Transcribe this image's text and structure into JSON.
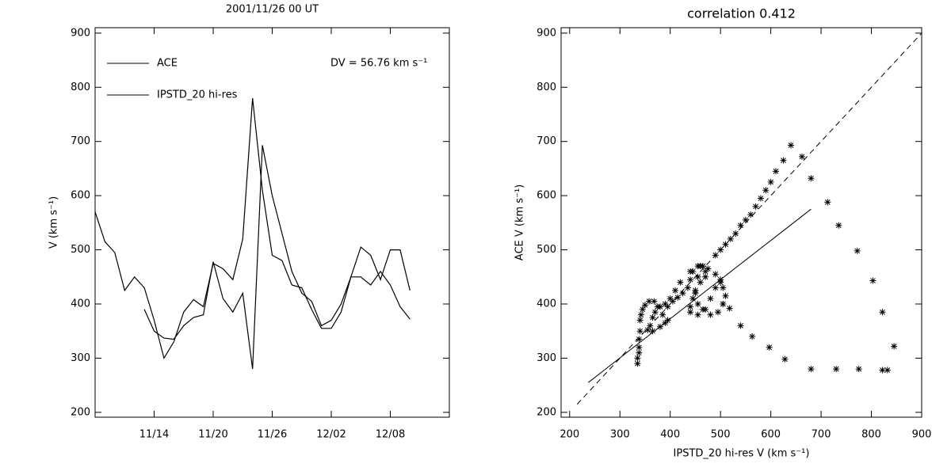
{
  "chart_data": [
    {
      "type": "line",
      "title": "2001/11/26 00 UT",
      "ylabel": "V (km s⁻¹)",
      "annotation": "DV = 56.76 km s⁻¹",
      "legend": "upper left",
      "x": [
        "11/08",
        "11/09",
        "11/10",
        "11/11",
        "11/12",
        "11/13",
        "11/14",
        "11/15",
        "11/16",
        "11/17",
        "11/18",
        "11/19",
        "11/20",
        "11/21",
        "11/22",
        "11/23",
        "11/24",
        "11/25",
        "11/26",
        "11/27",
        "11/28",
        "11/29",
        "11/30",
        "12/01",
        "12/02",
        "12/03",
        "12/04",
        "12/05",
        "12/06",
        "12/07",
        "12/08",
        "12/09",
        "12/10"
      ],
      "series": [
        {
          "name": "ACE",
          "color": "#000000",
          "values": [
            570,
            515,
            495,
            425,
            450,
            430,
            370,
            300,
            330,
            385,
            408,
            395,
            475,
            465,
            445,
            520,
            780,
            610,
            490,
            480,
            435,
            430,
            390,
            355,
            355,
            385,
            450,
            450,
            435,
            460,
            435,
            395,
            372
          ]
        },
        {
          "name": "IPSTD_20 hi-res",
          "color": "#000000",
          "values": [
            null,
            null,
            null,
            null,
            null,
            390,
            350,
            337,
            335,
            360,
            375,
            380,
            478,
            410,
            385,
            420,
            280,
            693,
            600,
            530,
            460,
            420,
            405,
            360,
            370,
            400,
            450,
            505,
            490,
            445,
            500,
            500,
            425
          ]
        }
      ],
      "xlim": [
        "11/08",
        "12/14"
      ],
      "xticks": [
        "11/14",
        "11/20",
        "11/26",
        "12/02",
        "12/08"
      ],
      "ylim": [
        191,
        910
      ],
      "yticks": [
        200,
        300,
        400,
        500,
        600,
        700,
        800,
        900
      ]
    },
    {
      "type": "scatter",
      "title": "correlation 0.412",
      "xlabel": "IPSTD_20 hi-res V (km s⁻¹)",
      "ylabel": "ACE V (km s⁻¹)",
      "color": "#000000",
      "x": [
        640,
        662,
        680,
        713,
        735,
        772,
        803,
        822,
        845,
        822,
        832,
        775,
        730,
        680,
        628,
        597,
        563,
        540,
        518,
        505,
        490,
        500,
        510,
        520,
        530,
        540,
        550,
        560,
        570,
        580,
        590,
        600,
        610,
        625,
        335,
        335,
        338,
        338,
        338,
        340,
        340,
        342,
        345,
        350,
        358,
        368,
        375,
        370,
        365,
        360,
        355,
        365,
        380,
        390,
        395,
        385,
        395,
        405,
        415,
        425,
        435,
        440,
        445,
        455,
        465,
        475,
        470,
        460,
        450,
        445,
        440,
        440,
        455,
        470,
        480,
        490,
        500,
        505,
        510,
        505,
        495,
        480,
        465,
        455,
        450,
        455,
        470,
        490,
        500,
        460,
        440,
        420,
        410,
        400,
        390,
        380
      ],
      "y": [
        693,
        672,
        632,
        588,
        545,
        498,
        443,
        385,
        322,
        278,
        278,
        280,
        280,
        280,
        298,
        320,
        340,
        360,
        392,
        400,
        490,
        500,
        510,
        520,
        530,
        545,
        555,
        565,
        580,
        595,
        610,
        625,
        645,
        665,
        290,
        300,
        310,
        320,
        335,
        350,
        370,
        380,
        390,
        398,
        405,
        405,
        395,
        385,
        375,
        360,
        352,
        350,
        358,
        365,
        370,
        380,
        395,
        405,
        412,
        420,
        430,
        445,
        460,
        470,
        470,
        465,
        450,
        440,
        425,
        410,
        395,
        385,
        380,
        390,
        410,
        430,
        440,
        430,
        415,
        400,
        385,
        380,
        390,
        400,
        420,
        450,
        460,
        455,
        445,
        470,
        460,
        440,
        425,
        410,
        400,
        395
      ],
      "reference_lines": [
        {
          "style": "dashed",
          "x": [
            215,
            900
          ],
          "y": [
            215,
            900
          ]
        },
        {
          "style": "solid",
          "x": [
            237,
            680
          ],
          "y": [
            255,
            575
          ]
        }
      ],
      "xlim": [
        183,
        900
      ],
      "xticks": [
        200,
        300,
        400,
        500,
        600,
        700,
        800,
        900
      ],
      "ylim": [
        191,
        910
      ],
      "yticks": [
        200,
        300,
        400,
        500,
        600,
        700,
        800,
        900
      ]
    }
  ]
}
